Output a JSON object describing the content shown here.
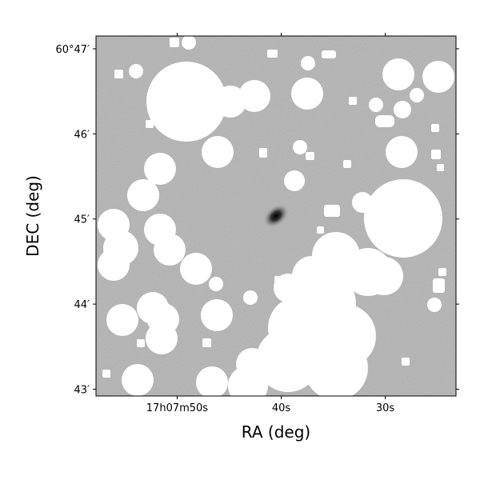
{
  "chart_data": {
    "type": "image",
    "xlabel": "RA (deg)",
    "ylabel": "DEC (deg)",
    "xlim": [
      57.8,
      23.2
    ],
    "xticks": [
      {
        "value": 50,
        "label": "17h07m50s"
      },
      {
        "value": 40,
        "label": "40s"
      },
      {
        "value": 30,
        "label": "30s"
      }
    ],
    "ylim": [
      42.92,
      47.15
    ],
    "yticks": [
      {
        "value": 47,
        "label": "60°47′"
      },
      {
        "value": 46,
        "label": "46′"
      },
      {
        "value": 45,
        "label": "45′"
      },
      {
        "value": 44,
        "label": "44′"
      },
      {
        "value": 43,
        "label": "43′"
      }
    ]
  }
}
